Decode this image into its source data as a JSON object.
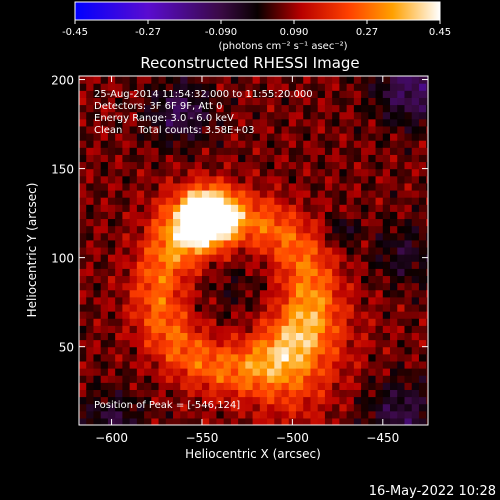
{
  "colorbar": {
    "ticks": [
      "-0.45",
      "-0.27",
      "-0.090",
      "0.090",
      "0.27",
      "0.45"
    ],
    "tick_values": [
      -0.45,
      -0.27,
      -0.09,
      0.09,
      0.27,
      0.45
    ],
    "range": [
      -0.45,
      0.45
    ],
    "units": "(photons cm⁻² s⁻¹ asec⁻²)",
    "stops": [
      {
        "v": 0.0,
        "color": "#0000ff"
      },
      {
        "v": 0.2,
        "color": "#5a0cd0"
      },
      {
        "v": 0.4,
        "color": "#3a0a44"
      },
      {
        "v": 0.5,
        "color": "#080000"
      },
      {
        "v": 0.62,
        "color": "#b80000"
      },
      {
        "v": 0.75,
        "color": "#ff4000"
      },
      {
        "v": 0.87,
        "color": "#ffa000"
      },
      {
        "v": 1.0,
        "color": "#ffffff"
      }
    ]
  },
  "chart_data": {
    "type": "heatmap",
    "title": "Reconstructed RHESSI Image",
    "xlabel": "Heliocentric X (arcsec)",
    "ylabel": "Heliocentric Y (arcsec)",
    "xlim": [
      -618,
      -425
    ],
    "ylim": [
      6,
      202
    ],
    "x_ticks": [
      -600,
      -550,
      -500,
      -450
    ],
    "x_tick_labels": [
      "−600",
      "−550",
      "−500",
      "−450"
    ],
    "y_ticks": [
      50,
      100,
      150,
      200
    ],
    "y_tick_labels": [
      "50",
      "100",
      "150",
      "200"
    ],
    "annotations": [
      "25-Aug-2014 11:54:32.000 to 11:55:20.000",
      "Detectors: 3F 6F 9F, Att 0",
      "Energy Range: 3.0 - 6.0 keV",
      "Clean     Total counts: 3.58E+03"
    ],
    "peak_label": "Position of Peak = [-546,124]",
    "peak": [
      -546,
      124
    ],
    "peak_value": 0.45,
    "sources": [
      {
        "x": -546,
        "y": 124,
        "sigma": 9,
        "amp": 0.55
      },
      {
        "x": -556,
        "y": 120,
        "sigma": 14,
        "amp": 0.18
      },
      {
        "x": -492,
        "y": 55,
        "sigma": 20,
        "amp": 0.12
      },
      {
        "x": -502,
        "y": 28,
        "sigma": 16,
        "amp": 0.1
      }
    ],
    "ring": {
      "x": -532,
      "y": 80,
      "r": 42,
      "width": 11,
      "amp": 0.2
    },
    "holes": [
      {
        "x": -472,
        "y": 115,
        "sigma": 5,
        "amp": -0.12
      },
      {
        "x": -530,
        "y": 82,
        "sigma": 12,
        "amp": -0.05
      },
      {
        "x": -562,
        "y": 182,
        "sigma": 12,
        "amp": -0.16
      },
      {
        "x": -434,
        "y": 195,
        "sigma": 14,
        "amp": -0.18
      },
      {
        "x": -600,
        "y": 8,
        "sigma": 12,
        "amp": -0.12
      },
      {
        "x": -440,
        "y": 12,
        "sigma": 14,
        "amp": -0.14
      },
      {
        "x": -438,
        "y": 102,
        "sigma": 12,
        "amp": -0.1
      }
    ],
    "grid": false
  },
  "footer": {
    "date": "16-May-2022 10:28"
  }
}
